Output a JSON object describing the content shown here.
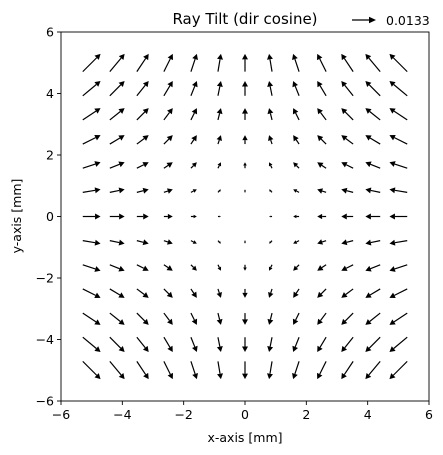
{
  "chart_data": {
    "type": "quiver",
    "title": "Ray Tilt (dir cosine)",
    "xlabel": "x-axis [mm]",
    "ylabel": "y-axis [mm]",
    "xlim": [
      -6,
      6
    ],
    "ylim": [
      -6,
      6
    ],
    "xticks": [
      -6,
      -4,
      -2,
      0,
      2,
      4,
      6
    ],
    "yticks": [
      -6,
      -4,
      -2,
      0,
      2,
      4,
      6
    ],
    "xtick_labels": [
      "−6",
      "−4",
      "−2",
      "0",
      "2",
      "4",
      "6"
    ],
    "ytick_labels": [
      "−6",
      "−4",
      "−2",
      "0",
      "2",
      "4",
      "6"
    ],
    "grid": false,
    "key": {
      "label": "0.0133",
      "value": 0.0133,
      "placement": "top-right, above axes"
    },
    "arrow_color": "#000000",
    "field": {
      "description": "Radial tilt field, vector = k * (-x, y) on an evenly spaced grid",
      "grid_x": [
        -5,
        -4.1667,
        -3.3333,
        -2.5,
        -1.6667,
        -0.8333,
        0,
        0.8333,
        1.6667,
        2.5,
        3.3333,
        4.1667,
        5
      ],
      "grid_y": [
        -5,
        -4.1667,
        -3.3333,
        -2.5,
        -1.6667,
        -0.8333,
        0,
        0.8333,
        1.6667,
        2.5,
        3.3333,
        4.1667,
        5
      ],
      "vector_per_mm": 0.00197,
      "u_sign": -1,
      "v_sign": 1
    }
  }
}
